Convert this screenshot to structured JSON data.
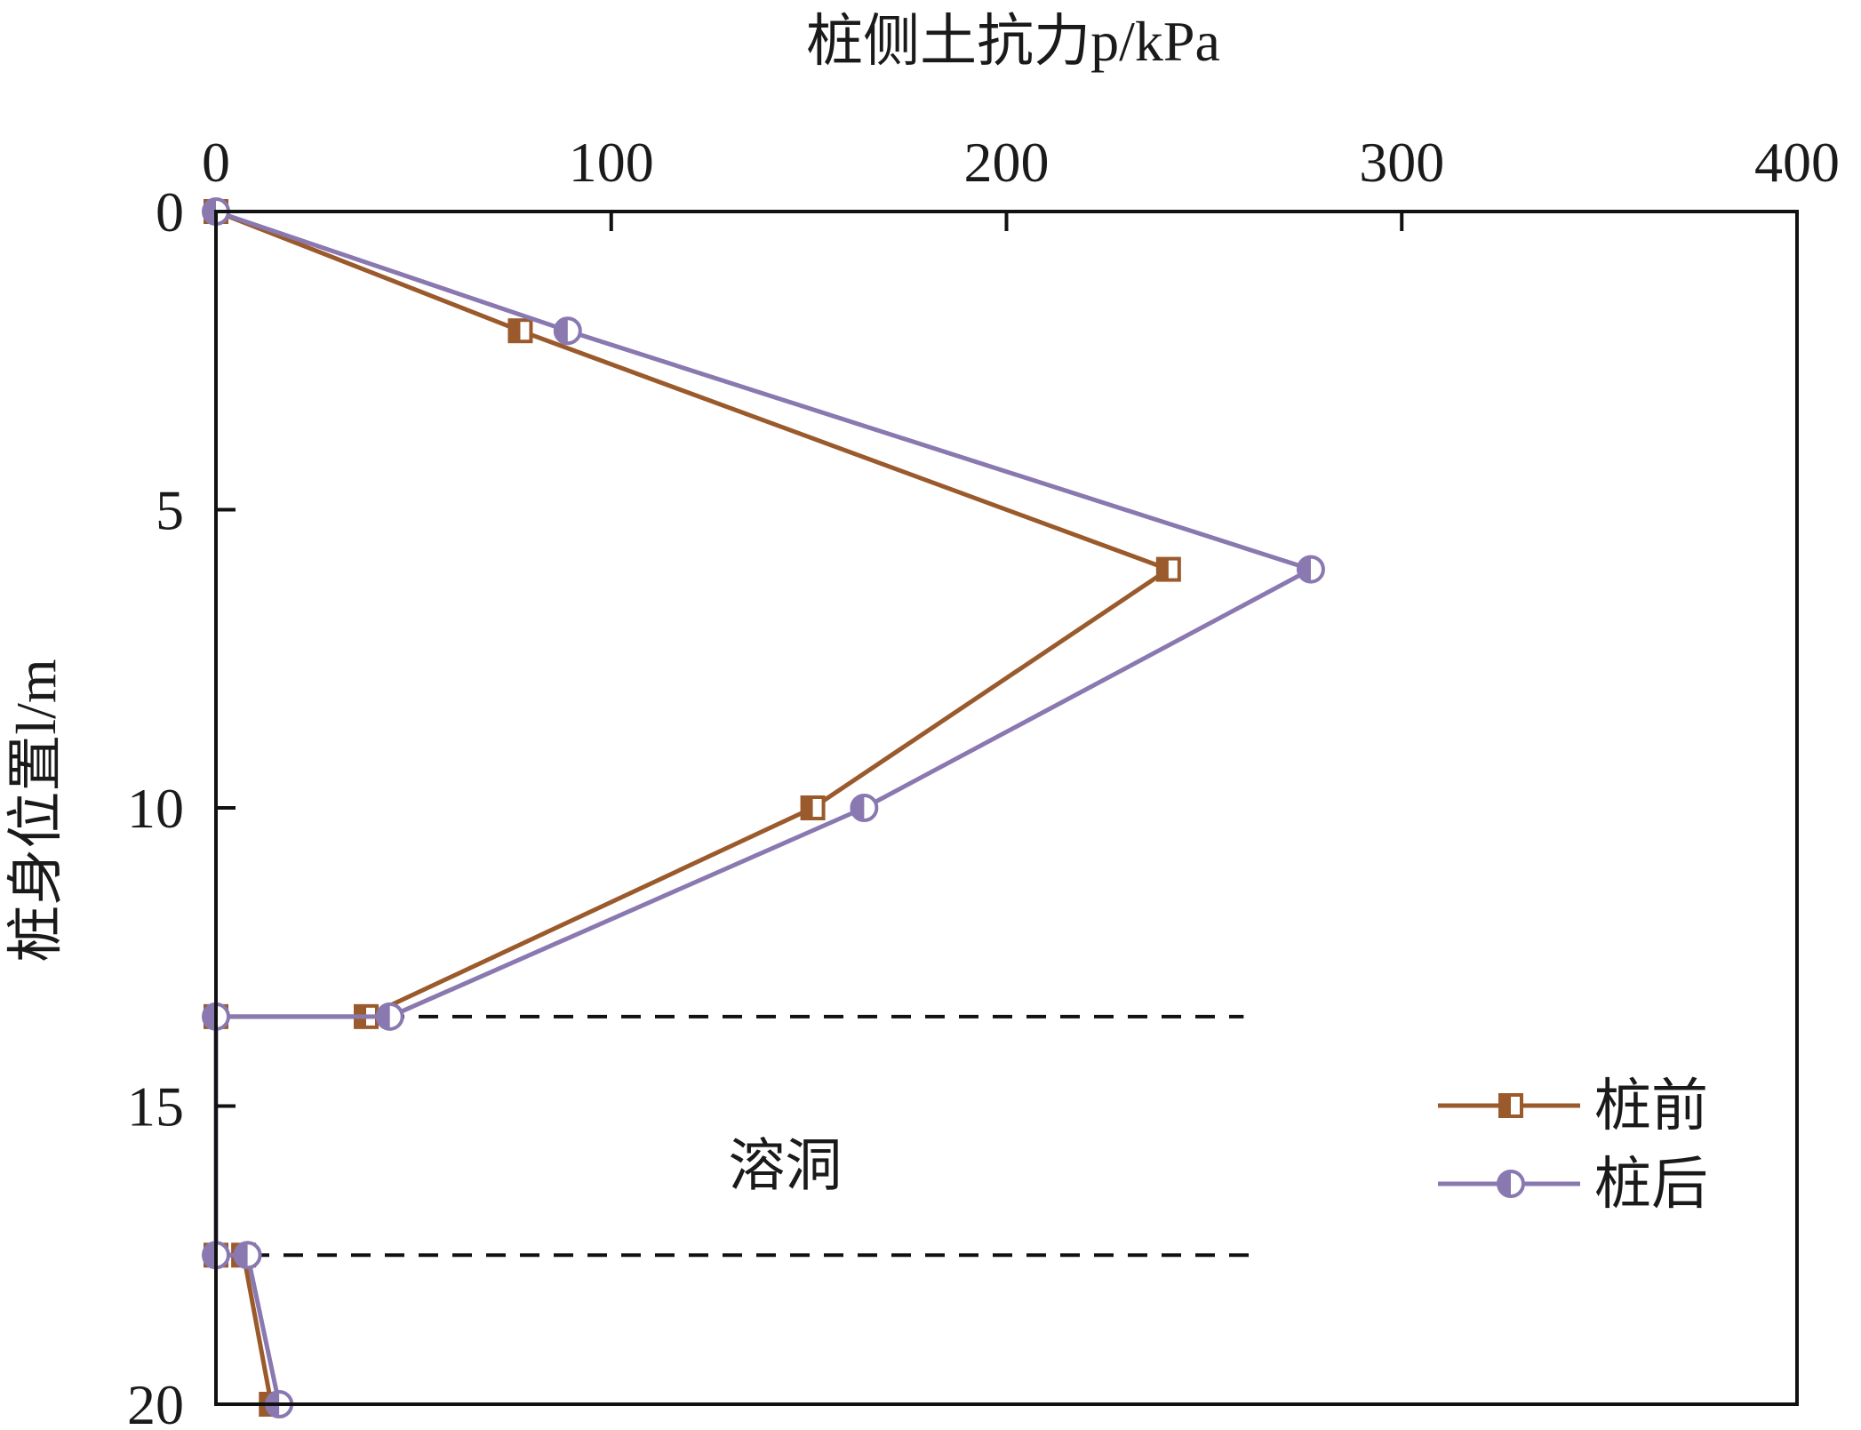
{
  "chart_data": {
    "type": "line",
    "orientation": "depth-profile",
    "xlabel": "桩侧土抗力p/kPa",
    "ylabel": "桩身位置l/m",
    "xlim": [
      0,
      400
    ],
    "ylim": [
      0,
      20
    ],
    "y_inverted": true,
    "x_axis_position": "top",
    "xticks": [
      "0",
      "100",
      "200",
      "300",
      "400"
    ],
    "yticks": [
      "0",
      "5",
      "10",
      "15",
      "20"
    ],
    "grid": false,
    "legend_position": "bottom-right",
    "series": [
      {
        "name": "桩前",
        "color": "#9a5a2c",
        "marker": "half-filled-square",
        "points": [
          {
            "x": 0,
            "y": 0
          },
          {
            "x": 77,
            "y": 2
          },
          {
            "x": 241,
            "y": 6
          },
          {
            "x": 151,
            "y": 10
          },
          {
            "x": 38,
            "y": 13.5
          },
          {
            "x": 0,
            "y": 13.5
          },
          {
            "x": 0,
            "y": 17.5
          },
          {
            "x": 7,
            "y": 17.5
          },
          {
            "x": 14,
            "y": 20
          }
        ]
      },
      {
        "name": "桩后",
        "color": "#8a78b0",
        "marker": "half-filled-circle",
        "points": [
          {
            "x": 0,
            "y": 0
          },
          {
            "x": 89,
            "y": 2
          },
          {
            "x": 277,
            "y": 6
          },
          {
            "x": 164,
            "y": 10
          },
          {
            "x": 44,
            "y": 13.5
          },
          {
            "x": 0,
            "y": 13.5
          },
          {
            "x": 0,
            "y": 17.5
          },
          {
            "x": 8,
            "y": 17.5
          },
          {
            "x": 16,
            "y": 20
          }
        ]
      }
    ],
    "reference_lines": [
      {
        "y": 13.5,
        "x_from": 0,
        "x_to": 260,
        "style": "dashed"
      },
      {
        "y": 17.5,
        "x_from": 0,
        "x_to": 263,
        "style": "dashed"
      }
    ],
    "annotations": [
      {
        "text": "溶洞",
        "x": 144,
        "y": 16
      }
    ]
  }
}
